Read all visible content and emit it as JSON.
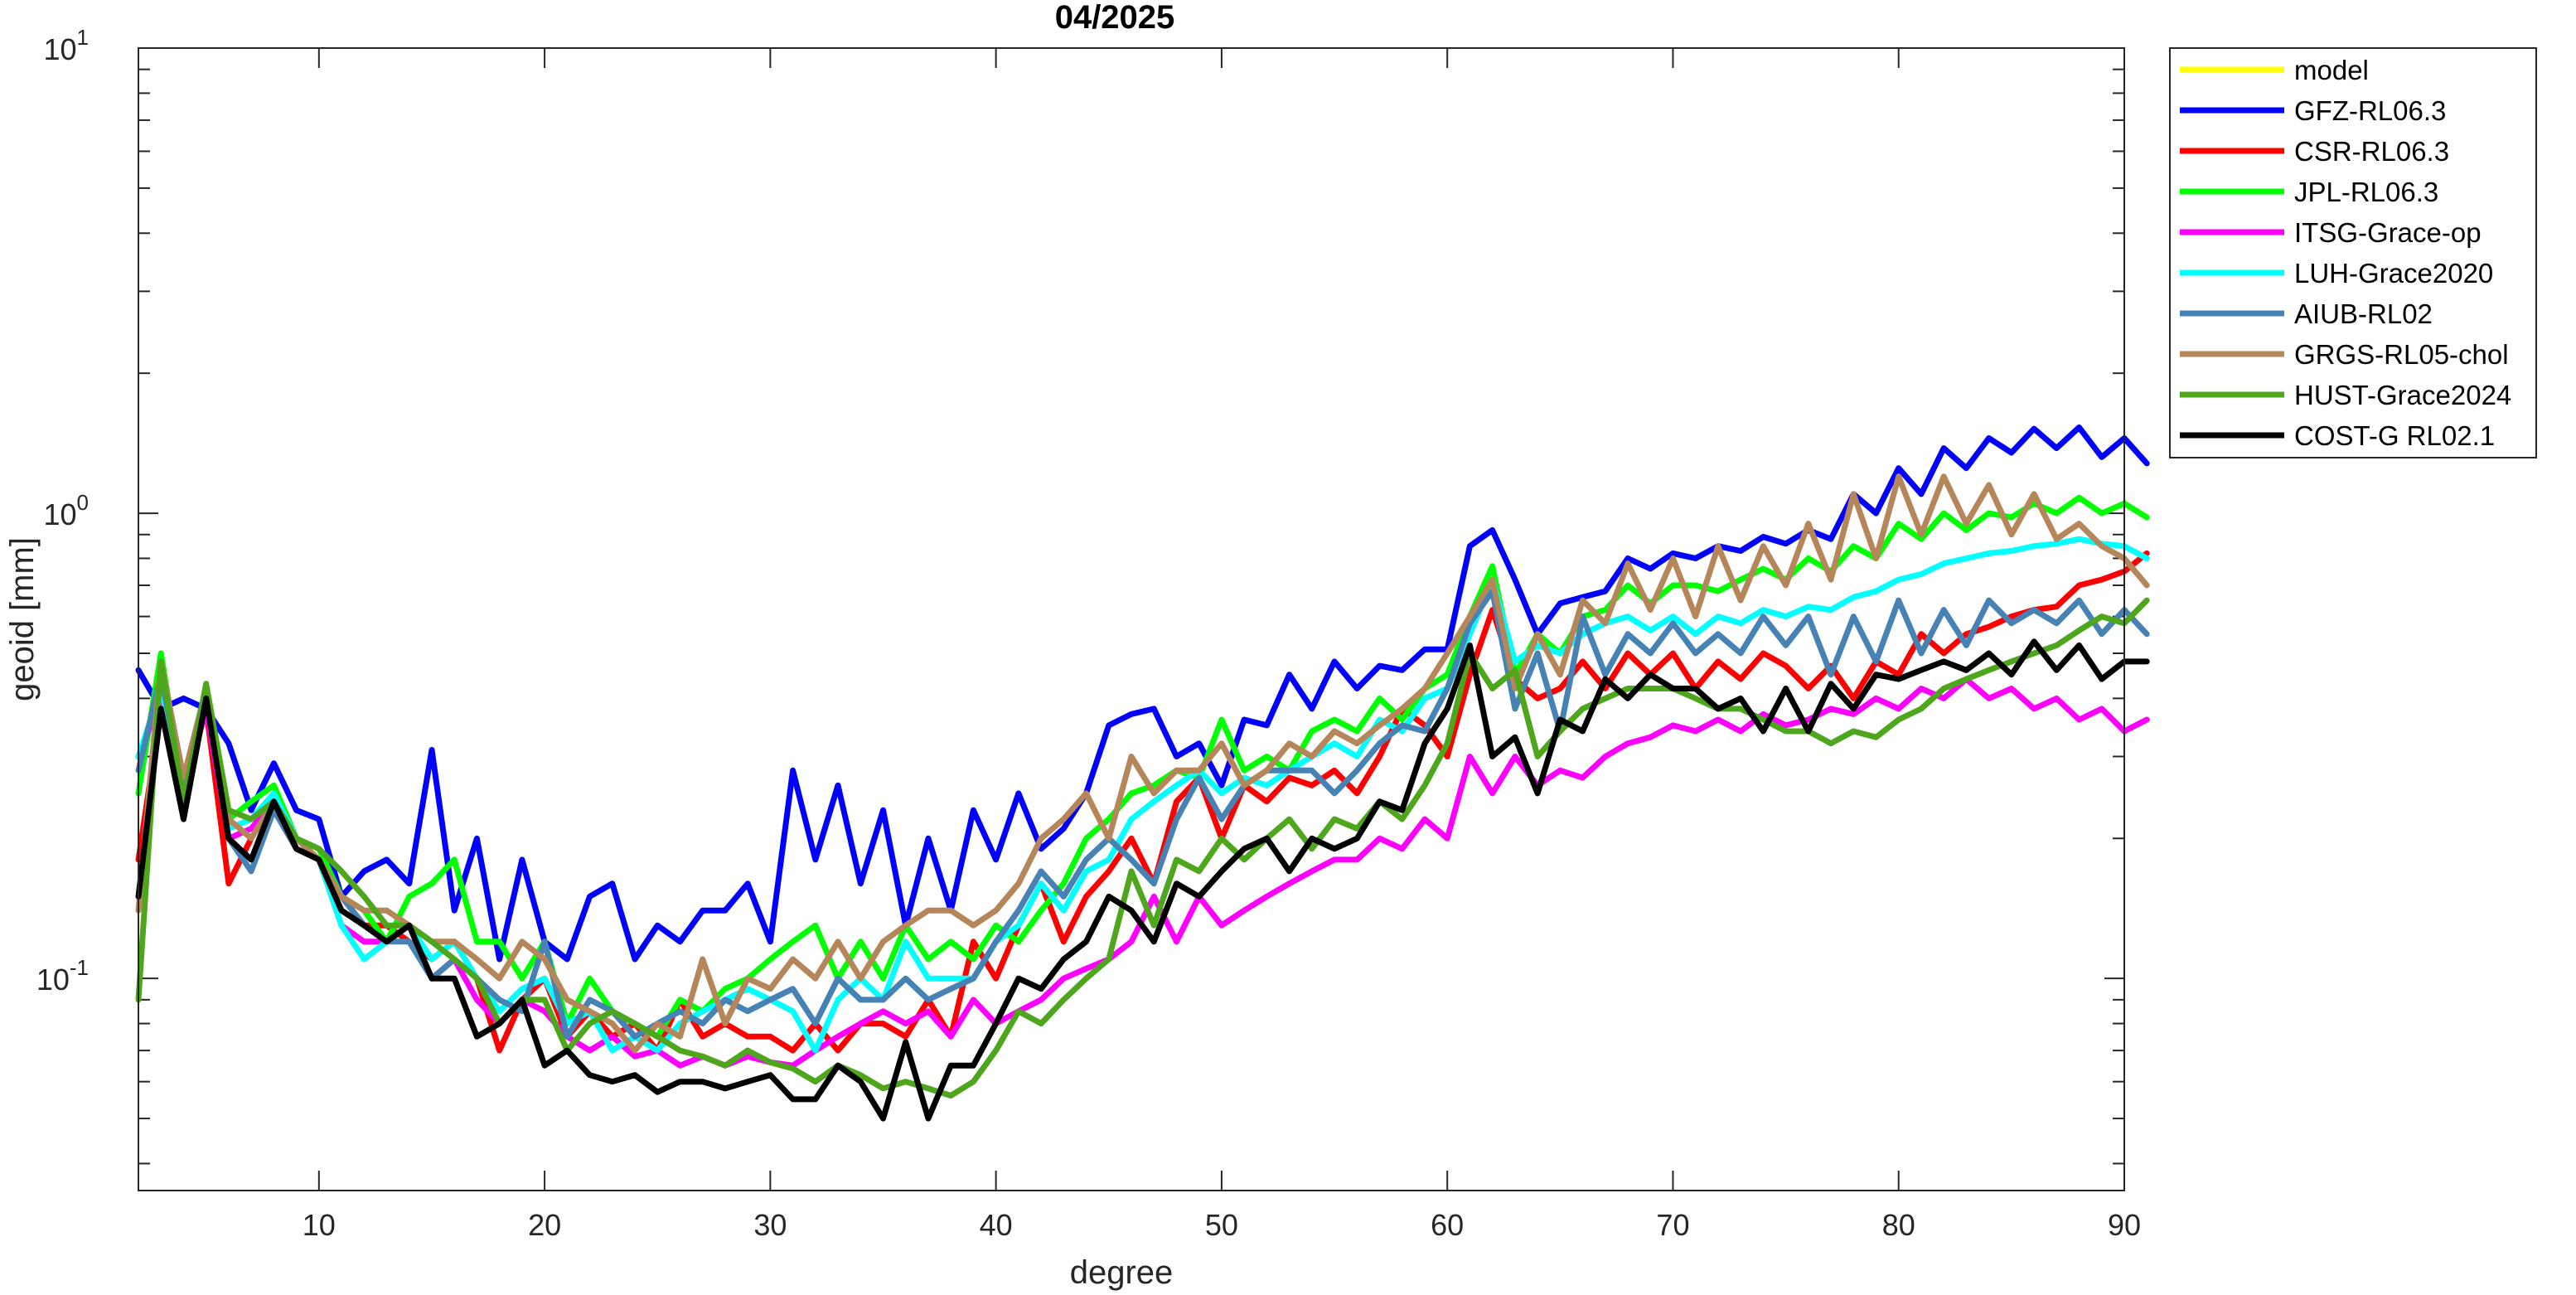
{
  "chart_data": {
    "type": "line",
    "title": "04/2025",
    "xlabel": "degree",
    "ylabel": "geoid [mm]",
    "xlim": [
      2,
      90
    ],
    "ylim": [
      0.035,
      10
    ],
    "yscale": "log",
    "xticks": [
      "10",
      "20",
      "30",
      "40",
      "50",
      "60",
      "70",
      "80",
      "90"
    ],
    "yticks": [
      {
        "base": "10",
        "exp": "-1"
      },
      {
        "base": "10",
        "exp": "0"
      },
      {
        "base": "10",
        "exp": "1"
      }
    ],
    "grid": false,
    "legend_location": "outside-right-top",
    "x_start": 2,
    "series": [
      {
        "name": "model",
        "color": "#FFFF00",
        "values": []
      },
      {
        "name": "GFZ-RL06.3",
        "color": "#0000FF",
        "values": [
          0.46,
          0.38,
          0.4,
          0.38,
          0.32,
          0.23,
          0.29,
          0.23,
          0.22,
          0.15,
          0.17,
          0.18,
          0.16,
          0.31,
          0.14,
          0.2,
          0.11,
          0.18,
          0.12,
          0.11,
          0.15,
          0.16,
          0.11,
          0.13,
          0.12,
          0.14,
          0.14,
          0.16,
          0.12,
          0.28,
          0.18,
          0.26,
          0.16,
          0.23,
          0.13,
          0.2,
          0.14,
          0.23,
          0.18,
          0.25,
          0.19,
          0.21,
          0.25,
          0.35,
          0.37,
          0.38,
          0.3,
          0.32,
          0.26,
          0.36,
          0.35,
          0.45,
          0.38,
          0.48,
          0.42,
          0.47,
          0.46,
          0.51,
          0.51,
          0.85,
          0.92,
          0.72,
          0.55,
          0.64,
          0.66,
          0.68,
          0.8,
          0.76,
          0.82,
          0.8,
          0.85,
          0.83,
          0.89,
          0.86,
          0.92,
          0.88,
          1.1,
          1.0,
          1.25,
          1.1,
          1.38,
          1.25,
          1.45,
          1.35,
          1.52,
          1.38,
          1.53,
          1.32,
          1.45,
          1.28
        ]
      },
      {
        "name": "CSR-RL06.3",
        "color": "#FF0000",
        "values": [
          0.18,
          0.38,
          0.26,
          0.38,
          0.16,
          0.2,
          0.24,
          0.19,
          0.18,
          0.15,
          0.13,
          0.13,
          0.12,
          0.11,
          0.12,
          0.1,
          0.07,
          0.09,
          0.1,
          0.075,
          0.085,
          0.075,
          0.08,
          0.07,
          0.09,
          0.075,
          0.08,
          0.075,
          0.075,
          0.07,
          0.08,
          0.07,
          0.08,
          0.08,
          0.075,
          0.09,
          0.075,
          0.12,
          0.1,
          0.13,
          0.16,
          0.12,
          0.15,
          0.17,
          0.2,
          0.16,
          0.24,
          0.27,
          0.2,
          0.26,
          0.24,
          0.27,
          0.26,
          0.28,
          0.25,
          0.3,
          0.38,
          0.35,
          0.3,
          0.45,
          0.62,
          0.44,
          0.4,
          0.42,
          0.48,
          0.42,
          0.5,
          0.45,
          0.5,
          0.42,
          0.48,
          0.44,
          0.5,
          0.47,
          0.42,
          0.47,
          0.4,
          0.48,
          0.45,
          0.55,
          0.5,
          0.55,
          0.57,
          0.6,
          0.62,
          0.63,
          0.7,
          0.72,
          0.75,
          0.82
        ]
      },
      {
        "name": "JPL-RL06.3",
        "color": "#00FF00",
        "values": [
          0.25,
          0.5,
          0.25,
          0.42,
          0.22,
          0.24,
          0.26,
          0.2,
          0.19,
          0.15,
          0.14,
          0.12,
          0.15,
          0.16,
          0.18,
          0.12,
          0.12,
          0.1,
          0.12,
          0.08,
          0.1,
          0.085,
          0.08,
          0.075,
          0.09,
          0.085,
          0.095,
          0.1,
          0.11,
          0.12,
          0.13,
          0.1,
          0.12,
          0.1,
          0.13,
          0.11,
          0.12,
          0.11,
          0.13,
          0.12,
          0.14,
          0.16,
          0.2,
          0.22,
          0.25,
          0.26,
          0.28,
          0.27,
          0.36,
          0.28,
          0.3,
          0.28,
          0.34,
          0.36,
          0.34,
          0.4,
          0.36,
          0.42,
          0.45,
          0.6,
          0.77,
          0.45,
          0.55,
          0.5,
          0.6,
          0.62,
          0.7,
          0.64,
          0.7,
          0.7,
          0.68,
          0.72,
          0.76,
          0.72,
          0.8,
          0.75,
          0.85,
          0.8,
          0.95,
          0.88,
          1.0,
          0.92,
          1.0,
          0.98,
          1.05,
          1.0,
          1.08,
          1.0,
          1.05,
          0.98
        ]
      },
      {
        "name": "ITSG-Grace-op",
        "color": "#FF00FF",
        "values": [
          0.3,
          0.4,
          0.25,
          0.38,
          0.2,
          0.21,
          0.24,
          0.2,
          0.18,
          0.13,
          0.12,
          0.12,
          0.13,
          0.1,
          0.11,
          0.09,
          0.08,
          0.09,
          0.085,
          0.075,
          0.07,
          0.075,
          0.068,
          0.07,
          0.065,
          0.068,
          0.065,
          0.068,
          0.066,
          0.065,
          0.07,
          0.075,
          0.08,
          0.085,
          0.08,
          0.085,
          0.075,
          0.09,
          0.08,
          0.085,
          0.09,
          0.1,
          0.105,
          0.11,
          0.12,
          0.15,
          0.12,
          0.15,
          0.13,
          0.14,
          0.15,
          0.16,
          0.17,
          0.18,
          0.18,
          0.2,
          0.19,
          0.22,
          0.2,
          0.3,
          0.25,
          0.3,
          0.26,
          0.28,
          0.27,
          0.3,
          0.32,
          0.33,
          0.35,
          0.34,
          0.36,
          0.34,
          0.37,
          0.35,
          0.36,
          0.38,
          0.37,
          0.4,
          0.38,
          0.42,
          0.4,
          0.44,
          0.4,
          0.42,
          0.38,
          0.4,
          0.36,
          0.38,
          0.34,
          0.36
        ]
      },
      {
        "name": "LUH-Grace2020",
        "color": "#00FFFF",
        "values": [
          0.3,
          0.42,
          0.26,
          0.4,
          0.21,
          0.22,
          0.25,
          0.2,
          0.18,
          0.13,
          0.11,
          0.12,
          0.13,
          0.11,
          0.12,
          0.1,
          0.085,
          0.095,
          0.1,
          0.08,
          0.085,
          0.07,
          0.075,
          0.07,
          0.08,
          0.085,
          0.09,
          0.095,
          0.09,
          0.085,
          0.07,
          0.09,
          0.1,
          0.09,
          0.12,
          0.1,
          0.1,
          0.1,
          0.12,
          0.13,
          0.16,
          0.14,
          0.17,
          0.18,
          0.22,
          0.24,
          0.26,
          0.28,
          0.25,
          0.27,
          0.26,
          0.28,
          0.3,
          0.32,
          0.3,
          0.36,
          0.34,
          0.4,
          0.42,
          0.55,
          0.72,
          0.48,
          0.52,
          0.5,
          0.55,
          0.58,
          0.6,
          0.56,
          0.6,
          0.55,
          0.6,
          0.58,
          0.62,
          0.6,
          0.63,
          0.62,
          0.66,
          0.68,
          0.72,
          0.74,
          0.78,
          0.8,
          0.82,
          0.83,
          0.85,
          0.86,
          0.88,
          0.86,
          0.85,
          0.8
        ]
      },
      {
        "name": "AIUB-RL02",
        "color": "#4682B4",
        "values": [
          0.28,
          0.45,
          0.25,
          0.4,
          0.2,
          0.17,
          0.23,
          0.19,
          0.18,
          0.15,
          0.13,
          0.12,
          0.12,
          0.1,
          0.11,
          0.1,
          0.09,
          0.085,
          0.12,
          0.075,
          0.09,
          0.085,
          0.075,
          0.08,
          0.085,
          0.08,
          0.09,
          0.085,
          0.09,
          0.095,
          0.08,
          0.1,
          0.09,
          0.09,
          0.1,
          0.09,
          0.095,
          0.1,
          0.12,
          0.14,
          0.17,
          0.15,
          0.18,
          0.2,
          0.18,
          0.16,
          0.22,
          0.27,
          0.22,
          0.26,
          0.28,
          0.28,
          0.28,
          0.25,
          0.28,
          0.32,
          0.35,
          0.34,
          0.42,
          0.58,
          0.68,
          0.38,
          0.5,
          0.34,
          0.6,
          0.45,
          0.55,
          0.5,
          0.58,
          0.5,
          0.55,
          0.5,
          0.6,
          0.52,
          0.6,
          0.45,
          0.6,
          0.48,
          0.65,
          0.5,
          0.62,
          0.52,
          0.65,
          0.58,
          0.62,
          0.58,
          0.65,
          0.55,
          0.62,
          0.55
        ]
      },
      {
        "name": "GRGS-RL05-chol",
        "color": "#B5865A",
        "values": [
          0.14,
          0.48,
          0.27,
          0.42,
          0.22,
          0.2,
          0.24,
          0.2,
          0.18,
          0.15,
          0.14,
          0.14,
          0.13,
          0.12,
          0.12,
          0.11,
          0.1,
          0.12,
          0.11,
          0.09,
          0.085,
          0.08,
          0.07,
          0.08,
          0.075,
          0.11,
          0.08,
          0.1,
          0.095,
          0.11,
          0.1,
          0.12,
          0.1,
          0.12,
          0.13,
          0.14,
          0.14,
          0.13,
          0.14,
          0.16,
          0.2,
          0.22,
          0.25,
          0.2,
          0.3,
          0.25,
          0.28,
          0.28,
          0.32,
          0.26,
          0.28,
          0.32,
          0.3,
          0.34,
          0.32,
          0.35,
          0.38,
          0.42,
          0.5,
          0.6,
          0.72,
          0.42,
          0.55,
          0.45,
          0.65,
          0.58,
          0.78,
          0.62,
          0.8,
          0.6,
          0.85,
          0.65,
          0.85,
          0.7,
          0.95,
          0.72,
          1.1,
          0.8,
          1.2,
          0.9,
          1.2,
          0.95,
          1.15,
          0.9,
          1.1,
          0.88,
          0.95,
          0.85,
          0.8,
          0.7
        ]
      },
      {
        "name": "HUST-Grace2024",
        "color": "#4DA61C",
        "values": [
          0.09,
          0.48,
          0.24,
          0.43,
          0.23,
          0.22,
          0.24,
          0.2,
          0.19,
          0.17,
          0.15,
          0.13,
          0.13,
          0.12,
          0.11,
          0.1,
          0.08,
          0.09,
          0.09,
          0.07,
          0.08,
          0.085,
          0.08,
          0.075,
          0.07,
          0.068,
          0.065,
          0.07,
          0.066,
          0.064,
          0.06,
          0.065,
          0.062,
          0.058,
          0.06,
          0.058,
          0.056,
          0.06,
          0.07,
          0.085,
          0.08,
          0.09,
          0.1,
          0.11,
          0.17,
          0.13,
          0.18,
          0.17,
          0.2,
          0.18,
          0.2,
          0.22,
          0.19,
          0.22,
          0.21,
          0.24,
          0.22,
          0.26,
          0.32,
          0.5,
          0.42,
          0.46,
          0.3,
          0.34,
          0.38,
          0.4,
          0.42,
          0.42,
          0.42,
          0.4,
          0.38,
          0.38,
          0.36,
          0.34,
          0.34,
          0.32,
          0.34,
          0.33,
          0.36,
          0.38,
          0.42,
          0.44,
          0.46,
          0.48,
          0.5,
          0.52,
          0.56,
          0.6,
          0.58,
          0.65
        ]
      },
      {
        "name": "COST-G RL02.1",
        "color": "#000000",
        "values": [
          0.15,
          0.38,
          0.22,
          0.4,
          0.2,
          0.18,
          0.24,
          0.19,
          0.18,
          0.14,
          0.13,
          0.12,
          0.13,
          0.1,
          0.1,
          0.075,
          0.08,
          0.09,
          0.065,
          0.07,
          0.062,
          0.06,
          0.062,
          0.057,
          0.06,
          0.06,
          0.058,
          0.06,
          0.062,
          0.055,
          0.055,
          0.065,
          0.06,
          0.05,
          0.073,
          0.05,
          0.065,
          0.065,
          0.08,
          0.1,
          0.095,
          0.11,
          0.12,
          0.15,
          0.14,
          0.12,
          0.16,
          0.15,
          0.17,
          0.19,
          0.2,
          0.17,
          0.2,
          0.19,
          0.2,
          0.24,
          0.23,
          0.32,
          0.38,
          0.52,
          0.3,
          0.33,
          0.25,
          0.36,
          0.34,
          0.44,
          0.4,
          0.45,
          0.42,
          0.42,
          0.38,
          0.4,
          0.34,
          0.42,
          0.34,
          0.43,
          0.38,
          0.45,
          0.44,
          0.46,
          0.48,
          0.46,
          0.5,
          0.45,
          0.53,
          0.46,
          0.52,
          0.44,
          0.48,
          0.48
        ]
      }
    ]
  }
}
